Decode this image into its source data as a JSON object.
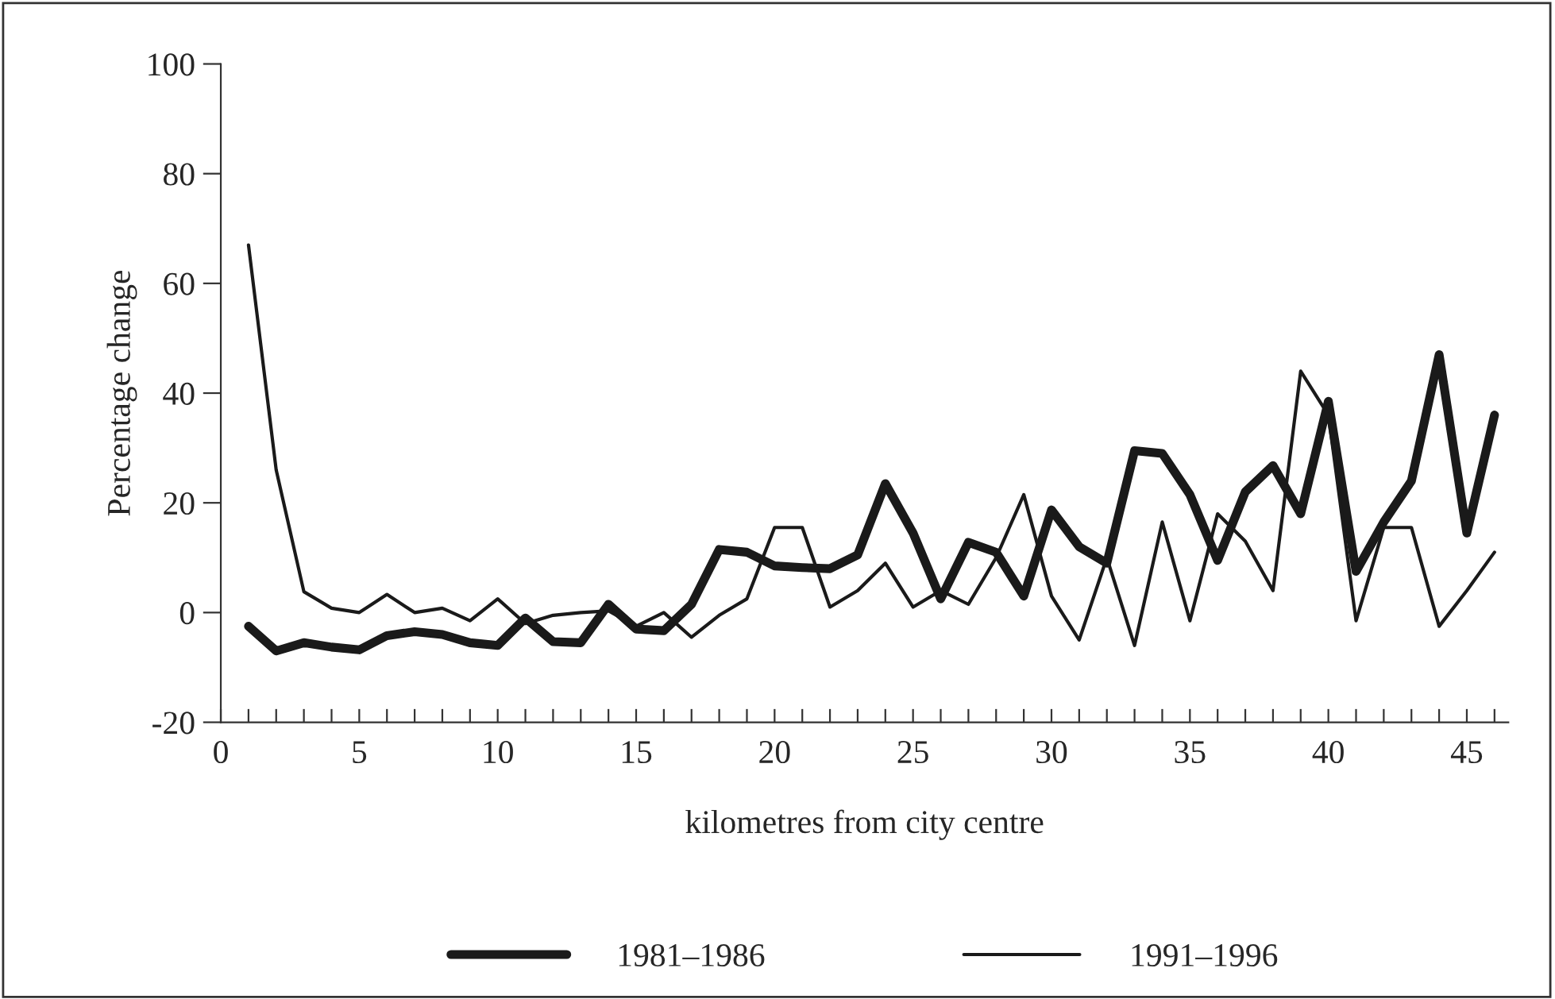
{
  "chart_data": {
    "type": "line",
    "xlabel": "kilometres from city centre",
    "ylabel": "Percentage change",
    "x": [
      1,
      2,
      3,
      4,
      5,
      6,
      7,
      8,
      9,
      10,
      11,
      12,
      13,
      14,
      15,
      16,
      17,
      18,
      19,
      20,
      21,
      22,
      23,
      24,
      25,
      26,
      27,
      28,
      29,
      30,
      31,
      32,
      33,
      34,
      35,
      36,
      37,
      38,
      39,
      40,
      41,
      42,
      43,
      44,
      45,
      46
    ],
    "series": [
      {
        "name": "1981–1986",
        "color": "#1a1a1a",
        "values": [
          -2.5,
          -7,
          -5.5,
          -6.3,
          -6.8,
          -4.2,
          -3.5,
          -4,
          -5.5,
          -6,
          -1,
          -5.3,
          -5.5,
          1.5,
          -3,
          -3.3,
          1.5,
          11.5,
          11,
          8.5,
          8.2,
          8,
          10.5,
          23.5,
          14.5,
          2.5,
          12.8,
          11,
          3,
          18.7,
          12,
          9,
          29.5,
          29,
          21.5,
          9.5,
          22,
          26.8,
          18,
          38.5,
          7.5,
          16.5,
          24,
          47,
          14.5,
          36
        ]
      },
      {
        "name": "1991–1996",
        "color": "#1a1a1a",
        "values": [
          67,
          26,
          3.8,
          0.8,
          0,
          3.3,
          0,
          0.8,
          -1.5,
          2.5,
          -2,
          -0.5,
          0,
          0.3,
          -2.5,
          0,
          -4.5,
          -0.5,
          2.5,
          15.5,
          15.5,
          1,
          4,
          9,
          1,
          4,
          1.5,
          10,
          21.5,
          3,
          -5,
          10,
          -6,
          16.5,
          -1.5,
          18,
          13,
          4,
          44,
          36,
          -1.5,
          15.5,
          15.5,
          -2.5,
          4,
          11
        ]
      }
    ],
    "xlim": [
      0,
      46.5
    ],
    "ylim": [
      -20,
      100
    ],
    "xticks": [
      0,
      {
        "value": 1,
        "label": null
      },
      {
        "value": 2,
        "label": null
      },
      {
        "value": 3,
        "label": null
      },
      {
        "value": 4,
        "label": null
      },
      5,
      {
        "value": 6,
        "label": null
      },
      {
        "value": 7,
        "label": null
      },
      {
        "value": 8,
        "label": null
      },
      {
        "value": 9,
        "label": null
      },
      10,
      {
        "value": 11,
        "label": null
      },
      {
        "value": 12,
        "label": null
      },
      {
        "value": 13,
        "label": null
      },
      {
        "value": 14,
        "label": null
      },
      15,
      {
        "value": 16,
        "label": null
      },
      {
        "value": 17,
        "label": null
      },
      {
        "value": 18,
        "label": null
      },
      {
        "value": 19,
        "label": null
      },
      20,
      {
        "value": 21,
        "label": null
      },
      {
        "value": 22,
        "label": null
      },
      {
        "value": 23,
        "label": null
      },
      {
        "value": 24,
        "label": null
      },
      25,
      {
        "value": 26,
        "label": null
      },
      {
        "value": 27,
        "label": null
      },
      {
        "value": 28,
        "label": null
      },
      {
        "value": 29,
        "label": null
      },
      30,
      {
        "value": 31,
        "label": null
      },
      {
        "value": 32,
        "label": null
      },
      {
        "value": 33,
        "label": null
      },
      {
        "value": 34,
        "label": null
      },
      35,
      {
        "value": 36,
        "label": null
      },
      {
        "value": 37,
        "label": null
      },
      {
        "value": 38,
        "label": null
      },
      {
        "value": 39,
        "label": null
      },
      40,
      {
        "value": 41,
        "label": null
      },
      {
        "value": 42,
        "label": null
      },
      {
        "value": 43,
        "label": null
      },
      {
        "value": 44,
        "label": null
      },
      45,
      {
        "value": 46,
        "label": null
      }
    ],
    "yticks": [
      -20,
      0,
      20,
      40,
      60,
      80,
      100
    ],
    "grid": false,
    "legend": "bottom",
    "marker": "none",
    "line_style": "solid"
  }
}
